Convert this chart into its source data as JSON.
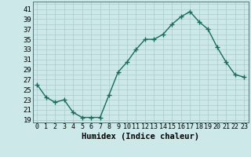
{
  "x": [
    0,
    1,
    2,
    3,
    4,
    5,
    6,
    7,
    8,
    9,
    10,
    11,
    12,
    13,
    14,
    15,
    16,
    17,
    18,
    19,
    20,
    21,
    22,
    23
  ],
  "y": [
    26,
    23.5,
    22.5,
    23,
    20.5,
    19.5,
    19.5,
    19.5,
    24,
    28.5,
    30.5,
    33,
    35,
    35,
    36,
    38,
    39.5,
    40.5,
    38.5,
    37,
    33.5,
    30.5,
    28,
    27.5
  ],
  "line_color": "#1a6b5a",
  "marker": "+",
  "bg_color": "#cce8e8",
  "grid_color": "#aacccc",
  "xlabel": "Humidex (Indice chaleur)",
  "ylabel_ticks": [
    19,
    21,
    23,
    25,
    27,
    29,
    31,
    33,
    35,
    37,
    39,
    41
  ],
  "xlim": [
    -0.5,
    23.5
  ],
  "ylim": [
    18.5,
    42.5
  ],
  "xlabel_fontsize": 7.5,
  "tick_fontsize": 6.5,
  "line_width": 1.0,
  "marker_size": 4
}
